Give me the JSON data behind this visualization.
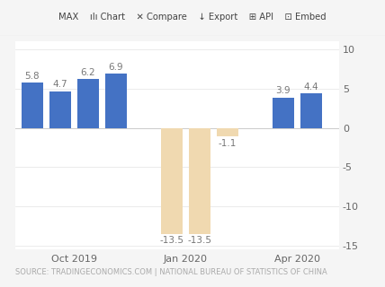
{
  "x_positions": [
    0,
    1,
    2,
    3,
    5,
    6,
    7,
    9,
    10
  ],
  "values": [
    5.8,
    4.7,
    6.2,
    6.9,
    -13.5,
    -13.5,
    -1.1,
    3.9,
    4.4
  ],
  "bar_colors": [
    "#4472c4",
    "#4472c4",
    "#4472c4",
    "#4472c4",
    "#f0d9b0",
    "#f0d9b0",
    "#f0d9b0",
    "#4472c4",
    "#4472c4"
  ],
  "value_labels": [
    "5.8",
    "4.7",
    "6.2",
    "6.9",
    "-13.5",
    "-13.5",
    "-1.1",
    "3.9",
    "4.4"
  ],
  "x_tick_positions": [
    1.5,
    5.5,
    9.5
  ],
  "x_tick_labels": [
    "Oct 2019",
    "Jan 2020",
    "Apr 2020"
  ],
  "ylim": [
    -15.5,
    11
  ],
  "yticks": [
    -15,
    -10,
    -5,
    0,
    5,
    10
  ],
  "ytick_labels": [
    "-15",
    "-10",
    "-5",
    "0",
    "5",
    "10"
  ],
  "source_text": "SOURCE: TRADINGECONOMICS.COM | NATIONAL BUREAU OF STATISTICS OF CHINA",
  "background_color": "#f5f5f5",
  "plot_bg_color": "#ffffff",
  "bar_width": 0.78,
  "label_fontsize": 7.5,
  "tick_fontsize": 8,
  "source_fontsize": 6.0,
  "toolbar_text": "MAX    ili Chart    ⇆ Compare    ↓ Export    ⋯ API    ⊠ Embed",
  "toolbar_bg": "#efefef",
  "xlim": [
    -0.6,
    11.0
  ]
}
